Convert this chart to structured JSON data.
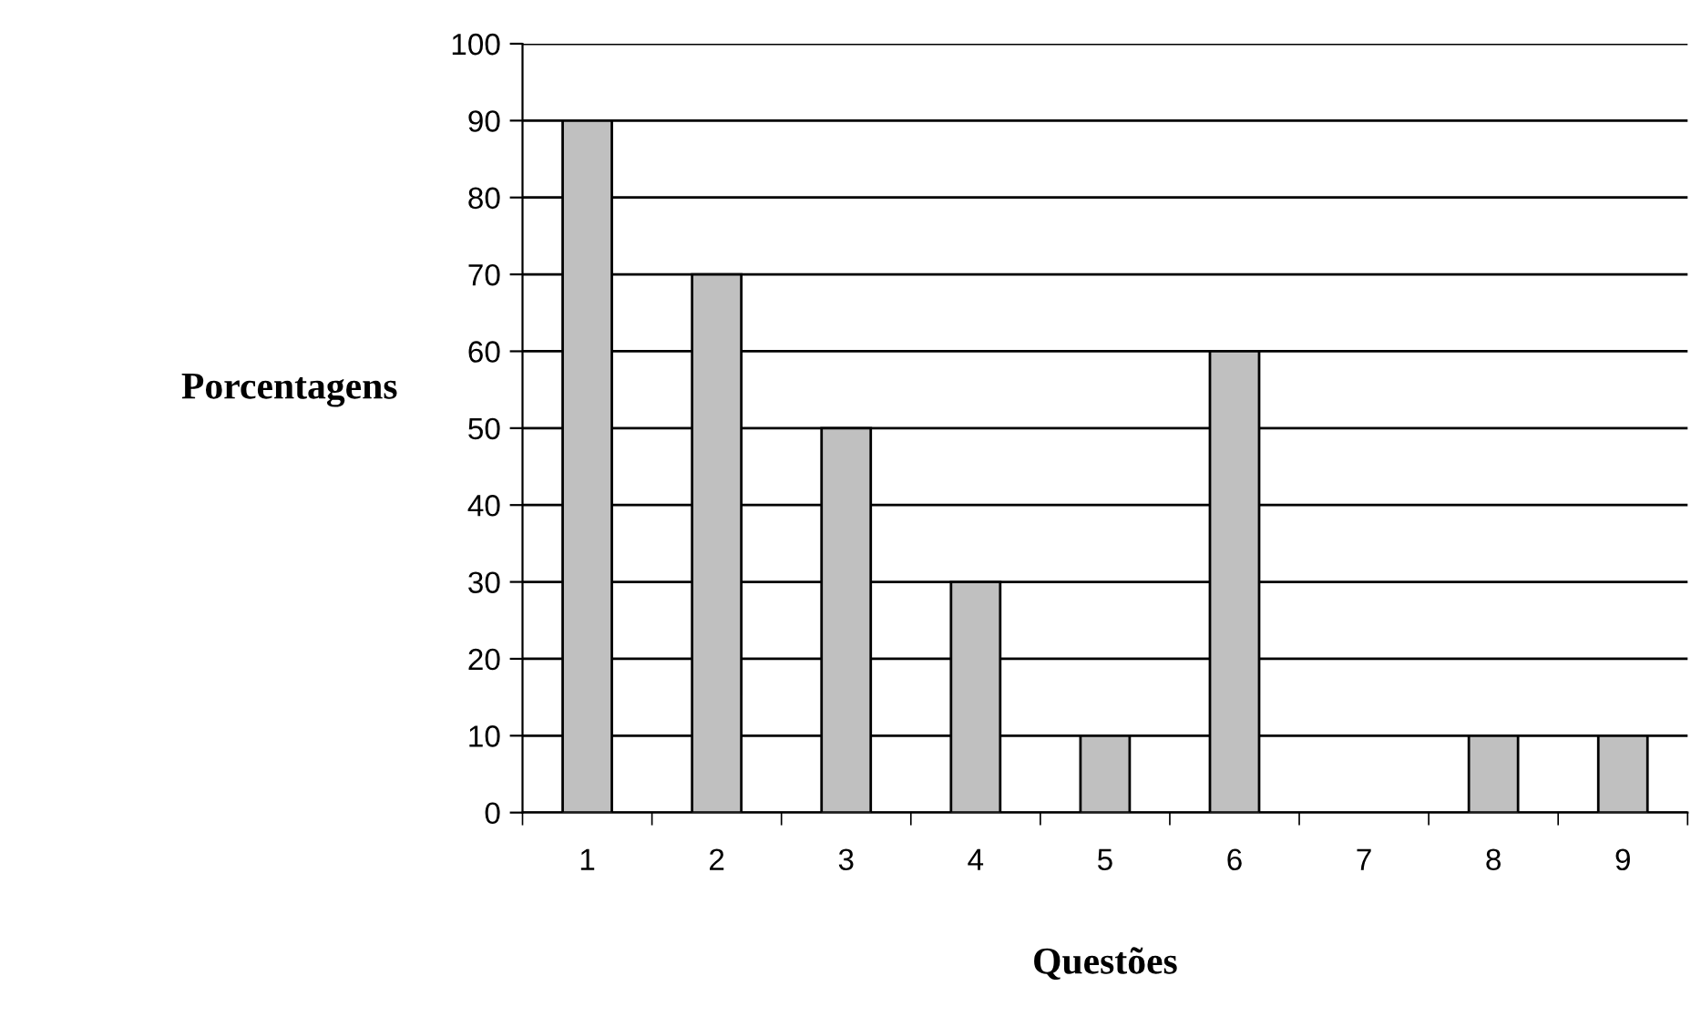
{
  "chart_data": {
    "type": "bar",
    "xlabel": "Questões",
    "ylabel": "Porcentagens",
    "categories": [
      "1",
      "2",
      "3",
      "4",
      "5",
      "6",
      "7",
      "8",
      "9"
    ],
    "values": [
      90,
      70,
      50,
      30,
      10,
      60,
      0,
      10,
      10
    ],
    "color": "#c0c0c0",
    "ylim": [
      0,
      100
    ],
    "yticks": [
      0,
      10,
      20,
      30,
      40,
      50,
      60,
      70,
      80,
      90,
      100
    ],
    "grid": "y",
    "legend": false
  }
}
